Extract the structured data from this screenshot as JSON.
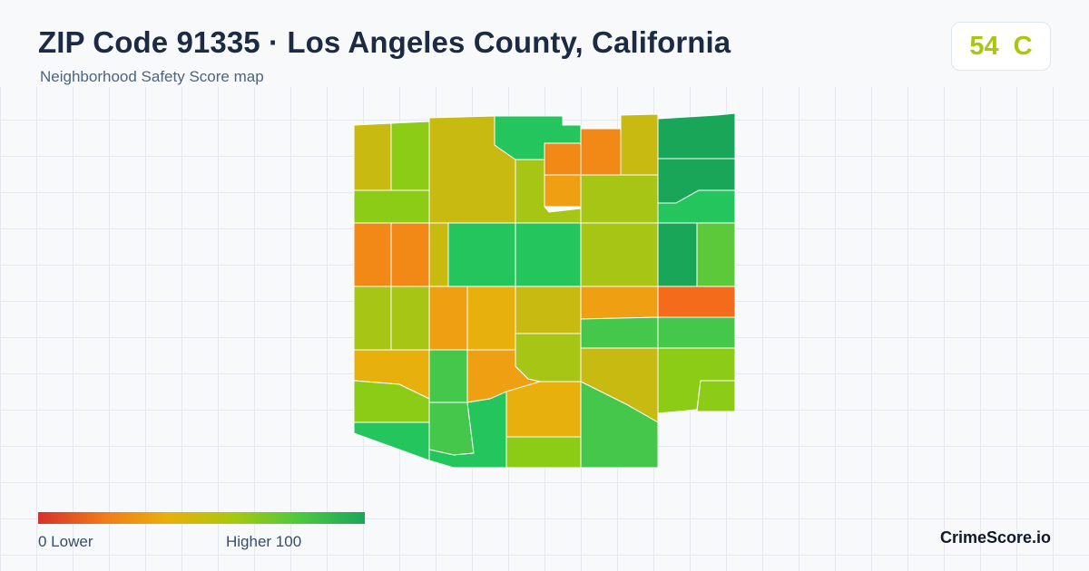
{
  "header": {
    "title": "ZIP Code 91335 · Los Angeles County, California",
    "subtitle": "Neighborhood Safety Score map"
  },
  "score": {
    "value": "54",
    "grade": "C",
    "color": "#a8c80e"
  },
  "legend": {
    "min_label": "0  Lower",
    "max_label": "Higher  100",
    "colors": [
      "#d7302a",
      "#f07a1a",
      "#e8b00c",
      "#a8c80e",
      "#4cc940",
      "#1aa659"
    ]
  },
  "brand": "CrimeScore.io",
  "palette": {
    "red": "#d7302a",
    "orange_red": "#f46b1c",
    "orange": "#f28815",
    "orange_amber": "#ef9f12",
    "amber": "#e8b00c",
    "olive_yellow": "#c8ba10",
    "yellow_green": "#a7c514",
    "lime": "#8ccb16",
    "green": "#5cc93a",
    "medium_green": "#44c74a",
    "bright_green": "#24c55c",
    "dark_green": "#1aa659"
  }
}
